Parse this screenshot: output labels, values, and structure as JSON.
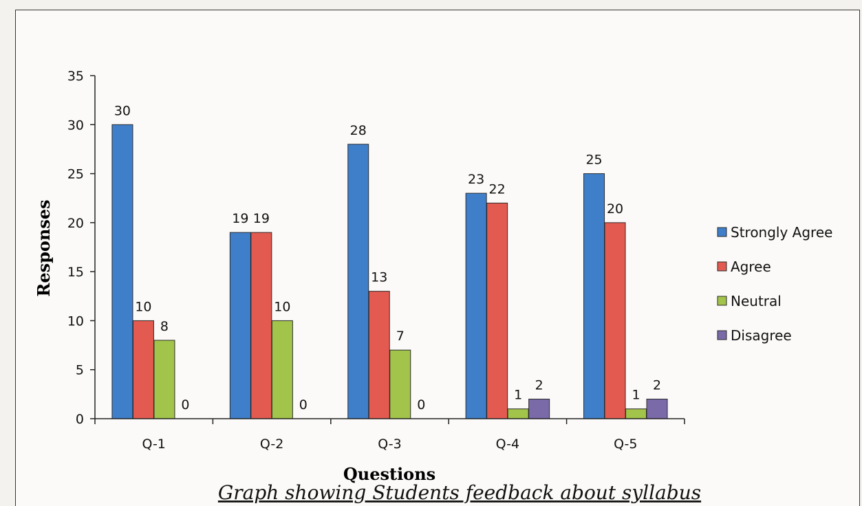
{
  "chart_data": {
    "type": "bar",
    "categories": [
      "Q-1",
      "Q-2",
      "Q-3",
      "Q-4",
      "Q-5"
    ],
    "series": [
      {
        "name": "Strongly Agree",
        "values": [
          30,
          19,
          28,
          23,
          25
        ],
        "color": "#3f7fca"
      },
      {
        "name": "Agree",
        "values": [
          10,
          19,
          13,
          22,
          20
        ],
        "color": "#e35a50"
      },
      {
        "name": "Neutral",
        "values": [
          8,
          10,
          7,
          1,
          1
        ],
        "color": "#a3c44a"
      },
      {
        "name": "Disagree",
        "values": [
          0,
          0,
          0,
          2,
          2
        ],
        "color": "#7a6aa8"
      }
    ],
    "xlabel": "Questions",
    "ylabel": "Responses",
    "ylim": [
      0,
      35
    ],
    "yticks": [
      0,
      5,
      10,
      15,
      20,
      25,
      30,
      35
    ],
    "legend_position": "right",
    "data_labels": true,
    "caption": "Graph showing Students feedback about syllabus"
  }
}
